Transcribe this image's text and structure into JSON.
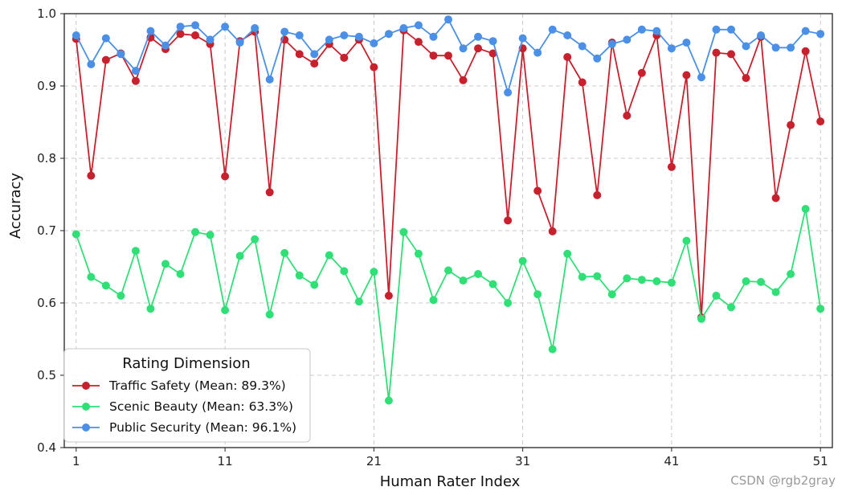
{
  "chart_data": {
    "type": "line",
    "title": "",
    "xlabel": "Human Rater Index",
    "ylabel": "Accuracy",
    "xlim": [
      0.2,
      51.8
    ],
    "ylim": [
      0.4,
      1.0
    ],
    "xticks": [
      1,
      11,
      21,
      31,
      41,
      51
    ],
    "xtick_labels": [
      "1",
      "11",
      "21",
      "31",
      "41",
      "51"
    ],
    "yticks": [
      0.4,
      0.5,
      0.6,
      0.7,
      0.8,
      0.9,
      1.0
    ],
    "ytick_labels": [
      "0.4",
      "0.5",
      "0.6",
      "0.7",
      "0.8",
      "0.9",
      "1.0"
    ],
    "grid": true,
    "legend": {
      "title": "Rating Dimension",
      "placement": "bottom-left"
    },
    "x": [
      1,
      2,
      3,
      4,
      5,
      6,
      7,
      8,
      9,
      10,
      11,
      12,
      13,
      14,
      15,
      16,
      17,
      18,
      19,
      20,
      21,
      22,
      23,
      24,
      25,
      26,
      27,
      28,
      29,
      30,
      31,
      32,
      33,
      34,
      35,
      36,
      37,
      38,
      39,
      40,
      41,
      42,
      43,
      44,
      45,
      46,
      47,
      48,
      49,
      50,
      51
    ],
    "series": [
      {
        "name": "Traffic Safety (Mean: 89.3%)",
        "color": "#c8202c",
        "values": [
          0.965,
          0.776,
          0.936,
          0.945,
          0.907,
          0.967,
          0.951,
          0.972,
          0.97,
          0.958,
          0.775,
          0.962,
          0.975,
          0.753,
          0.964,
          0.944,
          0.931,
          0.958,
          0.939,
          0.964,
          0.926,
          0.61,
          0.977,
          0.961,
          0.942,
          0.942,
          0.908,
          0.952,
          0.945,
          0.714,
          0.952,
          0.755,
          0.699,
          0.94,
          0.905,
          0.749,
          0.96,
          0.859,
          0.918,
          0.97,
          0.788,
          0.915,
          0.58,
          0.946,
          0.944,
          0.911,
          0.968,
          0.745,
          0.846,
          0.948,
          0.851
        ]
      },
      {
        "name": "Scenic Beauty (Mean: 63.3%)",
        "color": "#2ee076",
        "values": [
          0.695,
          0.636,
          0.624,
          0.61,
          0.672,
          0.592,
          0.654,
          0.64,
          0.698,
          0.694,
          0.59,
          0.665,
          0.688,
          0.584,
          0.669,
          0.638,
          0.625,
          0.666,
          0.644,
          0.602,
          0.643,
          0.465,
          0.698,
          0.668,
          0.604,
          0.645,
          0.631,
          0.64,
          0.626,
          0.6,
          0.658,
          0.612,
          0.536,
          0.668,
          0.636,
          0.637,
          0.612,
          0.634,
          0.632,
          0.63,
          0.628,
          0.686,
          0.578,
          0.61,
          0.594,
          0.63,
          0.629,
          0.615,
          0.64,
          0.73,
          0.592
        ]
      },
      {
        "name": "Public Security (Mean: 96.1%)",
        "color": "#4a90e8",
        "values": [
          0.97,
          0.93,
          0.966,
          0.944,
          0.921,
          0.976,
          0.956,
          0.982,
          0.984,
          0.964,
          0.982,
          0.96,
          0.98,
          0.909,
          0.975,
          0.97,
          0.944,
          0.964,
          0.97,
          0.968,
          0.959,
          0.972,
          0.98,
          0.984,
          0.968,
          0.992,
          0.952,
          0.968,
          0.962,
          0.891,
          0.966,
          0.946,
          0.978,
          0.97,
          0.955,
          0.938,
          0.958,
          0.964,
          0.978,
          0.976,
          0.952,
          0.96,
          0.912,
          0.978,
          0.978,
          0.955,
          0.97,
          0.953,
          0.953,
          0.976,
          0.972
        ]
      }
    ]
  },
  "watermark": "CSDN @rgb2gray"
}
